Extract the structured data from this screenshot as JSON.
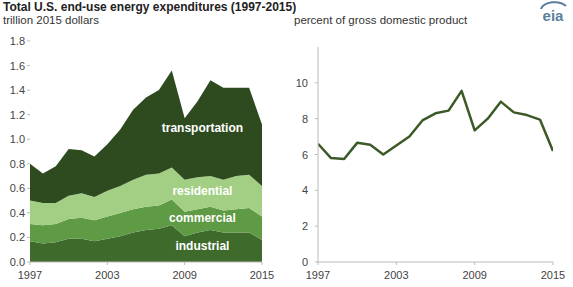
{
  "title": "Total U.S. end-use energy expenditures (1997-2015)",
  "logo": "eia",
  "chart_data": [
    {
      "type": "area",
      "stacked": true,
      "subtitle": "trillion 2015 dollars",
      "x": [
        1997,
        1998,
        1999,
        2000,
        2001,
        2002,
        2003,
        2004,
        2005,
        2006,
        2007,
        2008,
        2009,
        2010,
        2011,
        2012,
        2013,
        2014,
        2015
      ],
      "xlim": [
        1997,
        2015
      ],
      "xticks": [
        1997,
        2003,
        2009,
        2015
      ],
      "ylim": [
        0,
        1.8
      ],
      "yticks": [
        {
          "value": 0,
          "label": "0.0"
        },
        {
          "value": 0.2,
          "label": "0.2"
        },
        {
          "value": 0.4,
          "label": "0.4"
        },
        {
          "value": 0.6,
          "label": "0.6"
        },
        {
          "value": 0.8,
          "label": "0.8"
        },
        {
          "value": 1,
          "label": "1.0"
        },
        {
          "value": 1.2,
          "label": "1.2"
        },
        {
          "value": 1.4,
          "label": "1.4"
        },
        {
          "value": 1.6,
          "label": "1.6"
        },
        {
          "value": 1.8,
          "label": "1.8"
        }
      ],
      "grid": false,
      "series": [
        {
          "name": "industrial",
          "color": "#3e6a2c",
          "values": [
            0.17,
            0.15,
            0.16,
            0.19,
            0.19,
            0.17,
            0.19,
            0.21,
            0.24,
            0.26,
            0.27,
            0.3,
            0.21,
            0.24,
            0.26,
            0.24,
            0.24,
            0.24,
            0.18
          ]
        },
        {
          "name": "commercial",
          "color": "#5f9a45",
          "values": [
            0.14,
            0.15,
            0.15,
            0.16,
            0.17,
            0.17,
            0.18,
            0.19,
            0.19,
            0.19,
            0.19,
            0.21,
            0.2,
            0.19,
            0.19,
            0.18,
            0.19,
            0.2,
            0.19
          ]
        },
        {
          "name": "residential",
          "color": "#a2cf84",
          "values": [
            0.19,
            0.18,
            0.17,
            0.19,
            0.2,
            0.19,
            0.21,
            0.22,
            0.24,
            0.26,
            0.26,
            0.26,
            0.26,
            0.26,
            0.25,
            0.25,
            0.27,
            0.27,
            0.25
          ]
        },
        {
          "name": "transportation",
          "color": "#2e4b1f",
          "values": [
            0.3,
            0.24,
            0.3,
            0.38,
            0.35,
            0.33,
            0.38,
            0.46,
            0.57,
            0.63,
            0.68,
            0.79,
            0.5,
            0.62,
            0.78,
            0.75,
            0.72,
            0.71,
            0.5
          ]
        }
      ]
    },
    {
      "type": "line",
      "subtitle": "percent of gross domestic product",
      "x": [
        1997,
        1998,
        1999,
        2000,
        2001,
        2002,
        2003,
        2004,
        2005,
        2006,
        2007,
        2008,
        2009,
        2010,
        2011,
        2012,
        2013,
        2014,
        2015
      ],
      "xlim": [
        1997,
        2015
      ],
      "xticks": [
        1997,
        2003,
        2009,
        2015
      ],
      "ylim": [
        0,
        12
      ],
      "yticks": [
        0,
        2,
        4,
        6,
        8,
        10
      ],
      "grid": false,
      "series": [
        {
          "color": "#3b5a27",
          "values": [
            6.6,
            5.8,
            5.75,
            6.65,
            6.55,
            6.0,
            6.5,
            7.0,
            7.9,
            8.3,
            8.45,
            9.55,
            7.35,
            8.0,
            8.95,
            8.35,
            8.2,
            7.95,
            6.2
          ]
        }
      ]
    }
  ]
}
